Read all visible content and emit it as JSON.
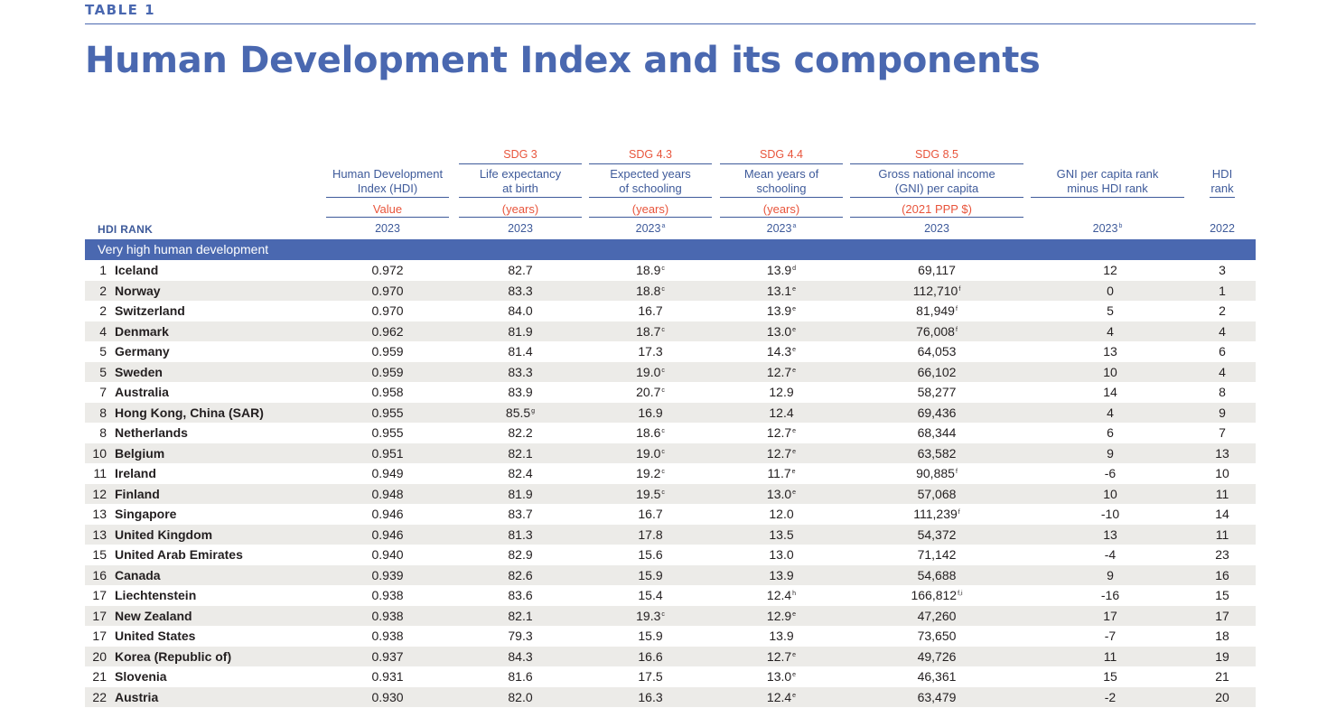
{
  "table_label": "TABLE 1",
  "title": "Human Development Index and its components",
  "header": {
    "rank_label": "HDI RANK",
    "columns": [
      {
        "sdg": "",
        "name1": "Human Development",
        "name2": "Index (HDI)",
        "unit": "Value",
        "year": "2023",
        "year_note": ""
      },
      {
        "sdg": "SDG 3",
        "name1": "Life expectancy",
        "name2": "at birth",
        "unit": "(years)",
        "year": "2023",
        "year_note": ""
      },
      {
        "sdg": "SDG 4.3",
        "name1": "Expected years",
        "name2": "of schooling",
        "unit": "(years)",
        "year": "2023",
        "year_note": "a"
      },
      {
        "sdg": "SDG 4.4",
        "name1": "Mean years of",
        "name2": "schooling",
        "unit": "(years)",
        "year": "2023",
        "year_note": "a"
      },
      {
        "sdg": "SDG 8.5",
        "name1": "Gross national income",
        "name2": "(GNI) per capita",
        "unit": "(2021 PPP $)",
        "year": "2023",
        "year_note": ""
      },
      {
        "sdg": "",
        "name1": "GNI per capita rank",
        "name2": "minus HDI rank",
        "unit": "",
        "year": "2023",
        "year_note": "b"
      },
      {
        "sdg": "",
        "name1": "HDI",
        "name2": "rank",
        "unit": "",
        "year": "2022",
        "year_note": ""
      }
    ]
  },
  "group_label": "Very high human development",
  "rows": [
    {
      "rank": "1",
      "country": "Iceland",
      "hdi": "0.972",
      "le": "82.7",
      "le_n": "",
      "eys": "18.9",
      "eys_n": "c",
      "mys": "13.9",
      "mys_n": "d",
      "gni": "69,117",
      "gni_n": "",
      "diff": "12",
      "rank22": "3"
    },
    {
      "rank": "2",
      "country": "Norway",
      "hdi": "0.970",
      "le": "83.3",
      "le_n": "",
      "eys": "18.8",
      "eys_n": "c",
      "mys": "13.1",
      "mys_n": "e",
      "gni": "112,710",
      "gni_n": "f",
      "diff": "0",
      "rank22": "1"
    },
    {
      "rank": "2",
      "country": "Switzerland",
      "hdi": "0.970",
      "le": "84.0",
      "le_n": "",
      "eys": "16.7",
      "eys_n": "",
      "mys": "13.9",
      "mys_n": "e",
      "gni": "81,949",
      "gni_n": "f",
      "diff": "5",
      "rank22": "2"
    },
    {
      "rank": "4",
      "country": "Denmark",
      "hdi": "0.962",
      "le": "81.9",
      "le_n": "",
      "eys": "18.7",
      "eys_n": "c",
      "mys": "13.0",
      "mys_n": "e",
      "gni": "76,008",
      "gni_n": "f",
      "diff": "4",
      "rank22": "4"
    },
    {
      "rank": "5",
      "country": "Germany",
      "hdi": "0.959",
      "le": "81.4",
      "le_n": "",
      "eys": "17.3",
      "eys_n": "",
      "mys": "14.3",
      "mys_n": "e",
      "gni": "64,053",
      "gni_n": "",
      "diff": "13",
      "rank22": "6"
    },
    {
      "rank": "5",
      "country": "Sweden",
      "hdi": "0.959",
      "le": "83.3",
      "le_n": "",
      "eys": "19.0",
      "eys_n": "c",
      "mys": "12.7",
      "mys_n": "e",
      "gni": "66,102",
      "gni_n": "",
      "diff": "10",
      "rank22": "4"
    },
    {
      "rank": "7",
      "country": "Australia",
      "hdi": "0.958",
      "le": "83.9",
      "le_n": "",
      "eys": "20.7",
      "eys_n": "c",
      "mys": "12.9",
      "mys_n": "",
      "gni": "58,277",
      "gni_n": "",
      "diff": "14",
      "rank22": "8"
    },
    {
      "rank": "8",
      "country": "Hong Kong, China (SAR)",
      "hdi": "0.955",
      "le": "85.5",
      "le_n": "g",
      "eys": "16.9",
      "eys_n": "",
      "mys": "12.4",
      "mys_n": "",
      "gni": "69,436",
      "gni_n": "",
      "diff": "4",
      "rank22": "9"
    },
    {
      "rank": "8",
      "country": "Netherlands",
      "hdi": "0.955",
      "le": "82.2",
      "le_n": "",
      "eys": "18.6",
      "eys_n": "c",
      "mys": "12.7",
      "mys_n": "e",
      "gni": "68,344",
      "gni_n": "",
      "diff": "6",
      "rank22": "7"
    },
    {
      "rank": "10",
      "country": "Belgium",
      "hdi": "0.951",
      "le": "82.1",
      "le_n": "",
      "eys": "19.0",
      "eys_n": "c",
      "mys": "12.7",
      "mys_n": "e",
      "gni": "63,582",
      "gni_n": "",
      "diff": "9",
      "rank22": "13"
    },
    {
      "rank": "11",
      "country": "Ireland",
      "hdi": "0.949",
      "le": "82.4",
      "le_n": "",
      "eys": "19.2",
      "eys_n": "c",
      "mys": "11.7",
      "mys_n": "e",
      "gni": "90,885",
      "gni_n": "f",
      "diff": "-6",
      "rank22": "10"
    },
    {
      "rank": "12",
      "country": "Finland",
      "hdi": "0.948",
      "le": "81.9",
      "le_n": "",
      "eys": "19.5",
      "eys_n": "c",
      "mys": "13.0",
      "mys_n": "e",
      "gni": "57,068",
      "gni_n": "",
      "diff": "10",
      "rank22": "11"
    },
    {
      "rank": "13",
      "country": "Singapore",
      "hdi": "0.946",
      "le": "83.7",
      "le_n": "",
      "eys": "16.7",
      "eys_n": "",
      "mys": "12.0",
      "mys_n": "",
      "gni": "111,239",
      "gni_n": "f",
      "diff": "-10",
      "rank22": "14"
    },
    {
      "rank": "13",
      "country": "United Kingdom",
      "hdi": "0.946",
      "le": "81.3",
      "le_n": "",
      "eys": "17.8",
      "eys_n": "",
      "mys": "13.5",
      "mys_n": "",
      "gni": "54,372",
      "gni_n": "",
      "diff": "13",
      "rank22": "11"
    },
    {
      "rank": "15",
      "country": "United Arab Emirates",
      "hdi": "0.940",
      "le": "82.9",
      "le_n": "",
      "eys": "15.6",
      "eys_n": "",
      "mys": "13.0",
      "mys_n": "",
      "gni": "71,142",
      "gni_n": "",
      "diff": "-4",
      "rank22": "23"
    },
    {
      "rank": "16",
      "country": "Canada",
      "hdi": "0.939",
      "le": "82.6",
      "le_n": "",
      "eys": "15.9",
      "eys_n": "",
      "mys": "13.9",
      "mys_n": "",
      "gni": "54,688",
      "gni_n": "",
      "diff": "9",
      "rank22": "16"
    },
    {
      "rank": "17",
      "country": "Liechtenstein",
      "hdi": "0.938",
      "le": "83.6",
      "le_n": "",
      "eys": "15.4",
      "eys_n": "",
      "mys": "12.4",
      "mys_n": "h",
      "gni": "166,812",
      "gni_n": "f,i",
      "diff": "-16",
      "rank22": "15"
    },
    {
      "rank": "17",
      "country": "New Zealand",
      "hdi": "0.938",
      "le": "82.1",
      "le_n": "",
      "eys": "19.3",
      "eys_n": "c",
      "mys": "12.9",
      "mys_n": "e",
      "gni": "47,260",
      "gni_n": "",
      "diff": "17",
      "rank22": "17"
    },
    {
      "rank": "17",
      "country": "United States",
      "hdi": "0.938",
      "le": "79.3",
      "le_n": "",
      "eys": "15.9",
      "eys_n": "",
      "mys": "13.9",
      "mys_n": "",
      "gni": "73,650",
      "gni_n": "",
      "diff": "-7",
      "rank22": "18"
    },
    {
      "rank": "20",
      "country": "Korea (Republic of)",
      "hdi": "0.937",
      "le": "84.3",
      "le_n": "",
      "eys": "16.6",
      "eys_n": "",
      "mys": "12.7",
      "mys_n": "e",
      "gni": "49,726",
      "gni_n": "",
      "diff": "11",
      "rank22": "19"
    },
    {
      "rank": "21",
      "country": "Slovenia",
      "hdi": "0.931",
      "le": "81.6",
      "le_n": "",
      "eys": "17.5",
      "eys_n": "",
      "mys": "13.0",
      "mys_n": "e",
      "gni": "46,361",
      "gni_n": "",
      "diff": "15",
      "rank22": "21"
    },
    {
      "rank": "22",
      "country": "Austria",
      "hdi": "0.930",
      "le": "82.0",
      "le_n": "",
      "eys": "16.3",
      "eys_n": "",
      "mys": "12.4",
      "mys_n": "e",
      "gni": "63,479",
      "gni_n": "",
      "diff": "-2",
      "rank22": "20"
    }
  ],
  "colors": {
    "brand_blue": "#4a68b0",
    "sdg_red": "#e8543b",
    "row_shade": "#ecebe8"
  }
}
